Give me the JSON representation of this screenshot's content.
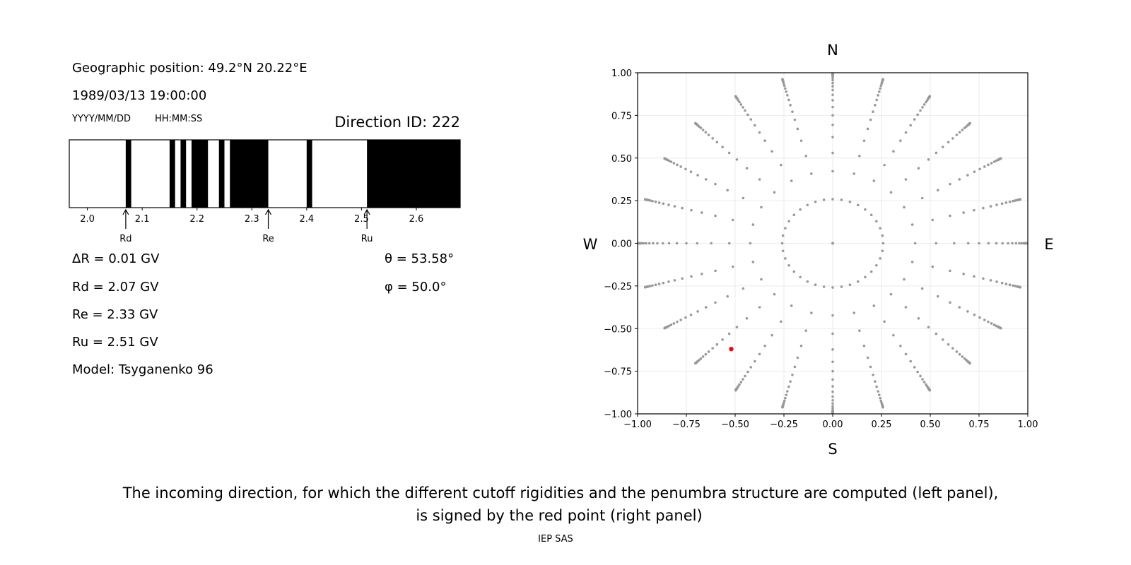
{
  "left_panel": {
    "geo_position": "Geographic position: 49.2°N 20.22°E",
    "datetime": "1989/03/13 19:00:00",
    "date_format": "YYYY/MM/DD",
    "time_format": "HH:MM:SS",
    "direction_id": "Direction ID: 222",
    "delta_r": "ΔR = 0.01 GV",
    "rd": "Rd = 2.07 GV",
    "re": "Re = 2.33 GV",
    "ru": "Ru = 2.51 GV",
    "model": "Model: Tsyganenko 96",
    "theta": "θ = 53.58°",
    "phi": "φ = 50.0°"
  },
  "chart_data": [
    {
      "type": "bar",
      "description_kind": "penumbra",
      "xlim": [
        1.967,
        2.68
      ],
      "xticks": [
        "2.0",
        "2.1",
        "2.2",
        "2.3",
        "2.4",
        "2.5",
        "2.6"
      ],
      "black_intervals": [
        [
          2.07,
          2.08
        ],
        [
          2.15,
          2.16
        ],
        [
          2.17,
          2.18
        ],
        [
          2.19,
          2.22
        ],
        [
          2.24,
          2.25
        ],
        [
          2.26,
          2.33
        ],
        [
          2.4,
          2.41
        ],
        [
          2.51,
          2.68
        ]
      ],
      "markers": [
        {
          "label": "Rd",
          "x": 2.07
        },
        {
          "label": "Re",
          "x": 2.33
        },
        {
          "label": "Ru",
          "x": 2.51
        }
      ],
      "colors": {
        "forbidden": "#000000",
        "allowed": "#ffffff"
      }
    },
    {
      "type": "scatter",
      "xlim": [
        -1,
        1
      ],
      "ylim": [
        -1,
        1
      ],
      "xticks": [
        "−1.00",
        "−0.75",
        "−0.50",
        "−0.25",
        "0.00",
        "0.25",
        "0.50",
        "0.75",
        "1.00"
      ],
      "yticks": [
        "1.00",
        "0.75",
        "0.50",
        "0.25",
        "0.00",
        "−0.25",
        "−0.50",
        "−0.75",
        "−1.00"
      ],
      "grid": true,
      "compass": {
        "n": "N",
        "s": "S",
        "e": "E",
        "w": "W"
      },
      "azimuth_step_deg": 15,
      "zenith_angles_deg": [
        0,
        15,
        25,
        32,
        38.5,
        44,
        48.6,
        53,
        57,
        60.5,
        64,
        67,
        70,
        73,
        75.5,
        78,
        80
      ],
      "grey_color": "#999999",
      "highlight": {
        "x": -0.52,
        "y": -0.62,
        "color": "#ff0000"
      }
    }
  ],
  "caption": {
    "line1": "The incoming direction, for which the different cutoff rigidities and the penumbra structure are computed (left panel),",
    "line2": "is signed by the red point (right panel)"
  },
  "footer": "IEP SAS"
}
